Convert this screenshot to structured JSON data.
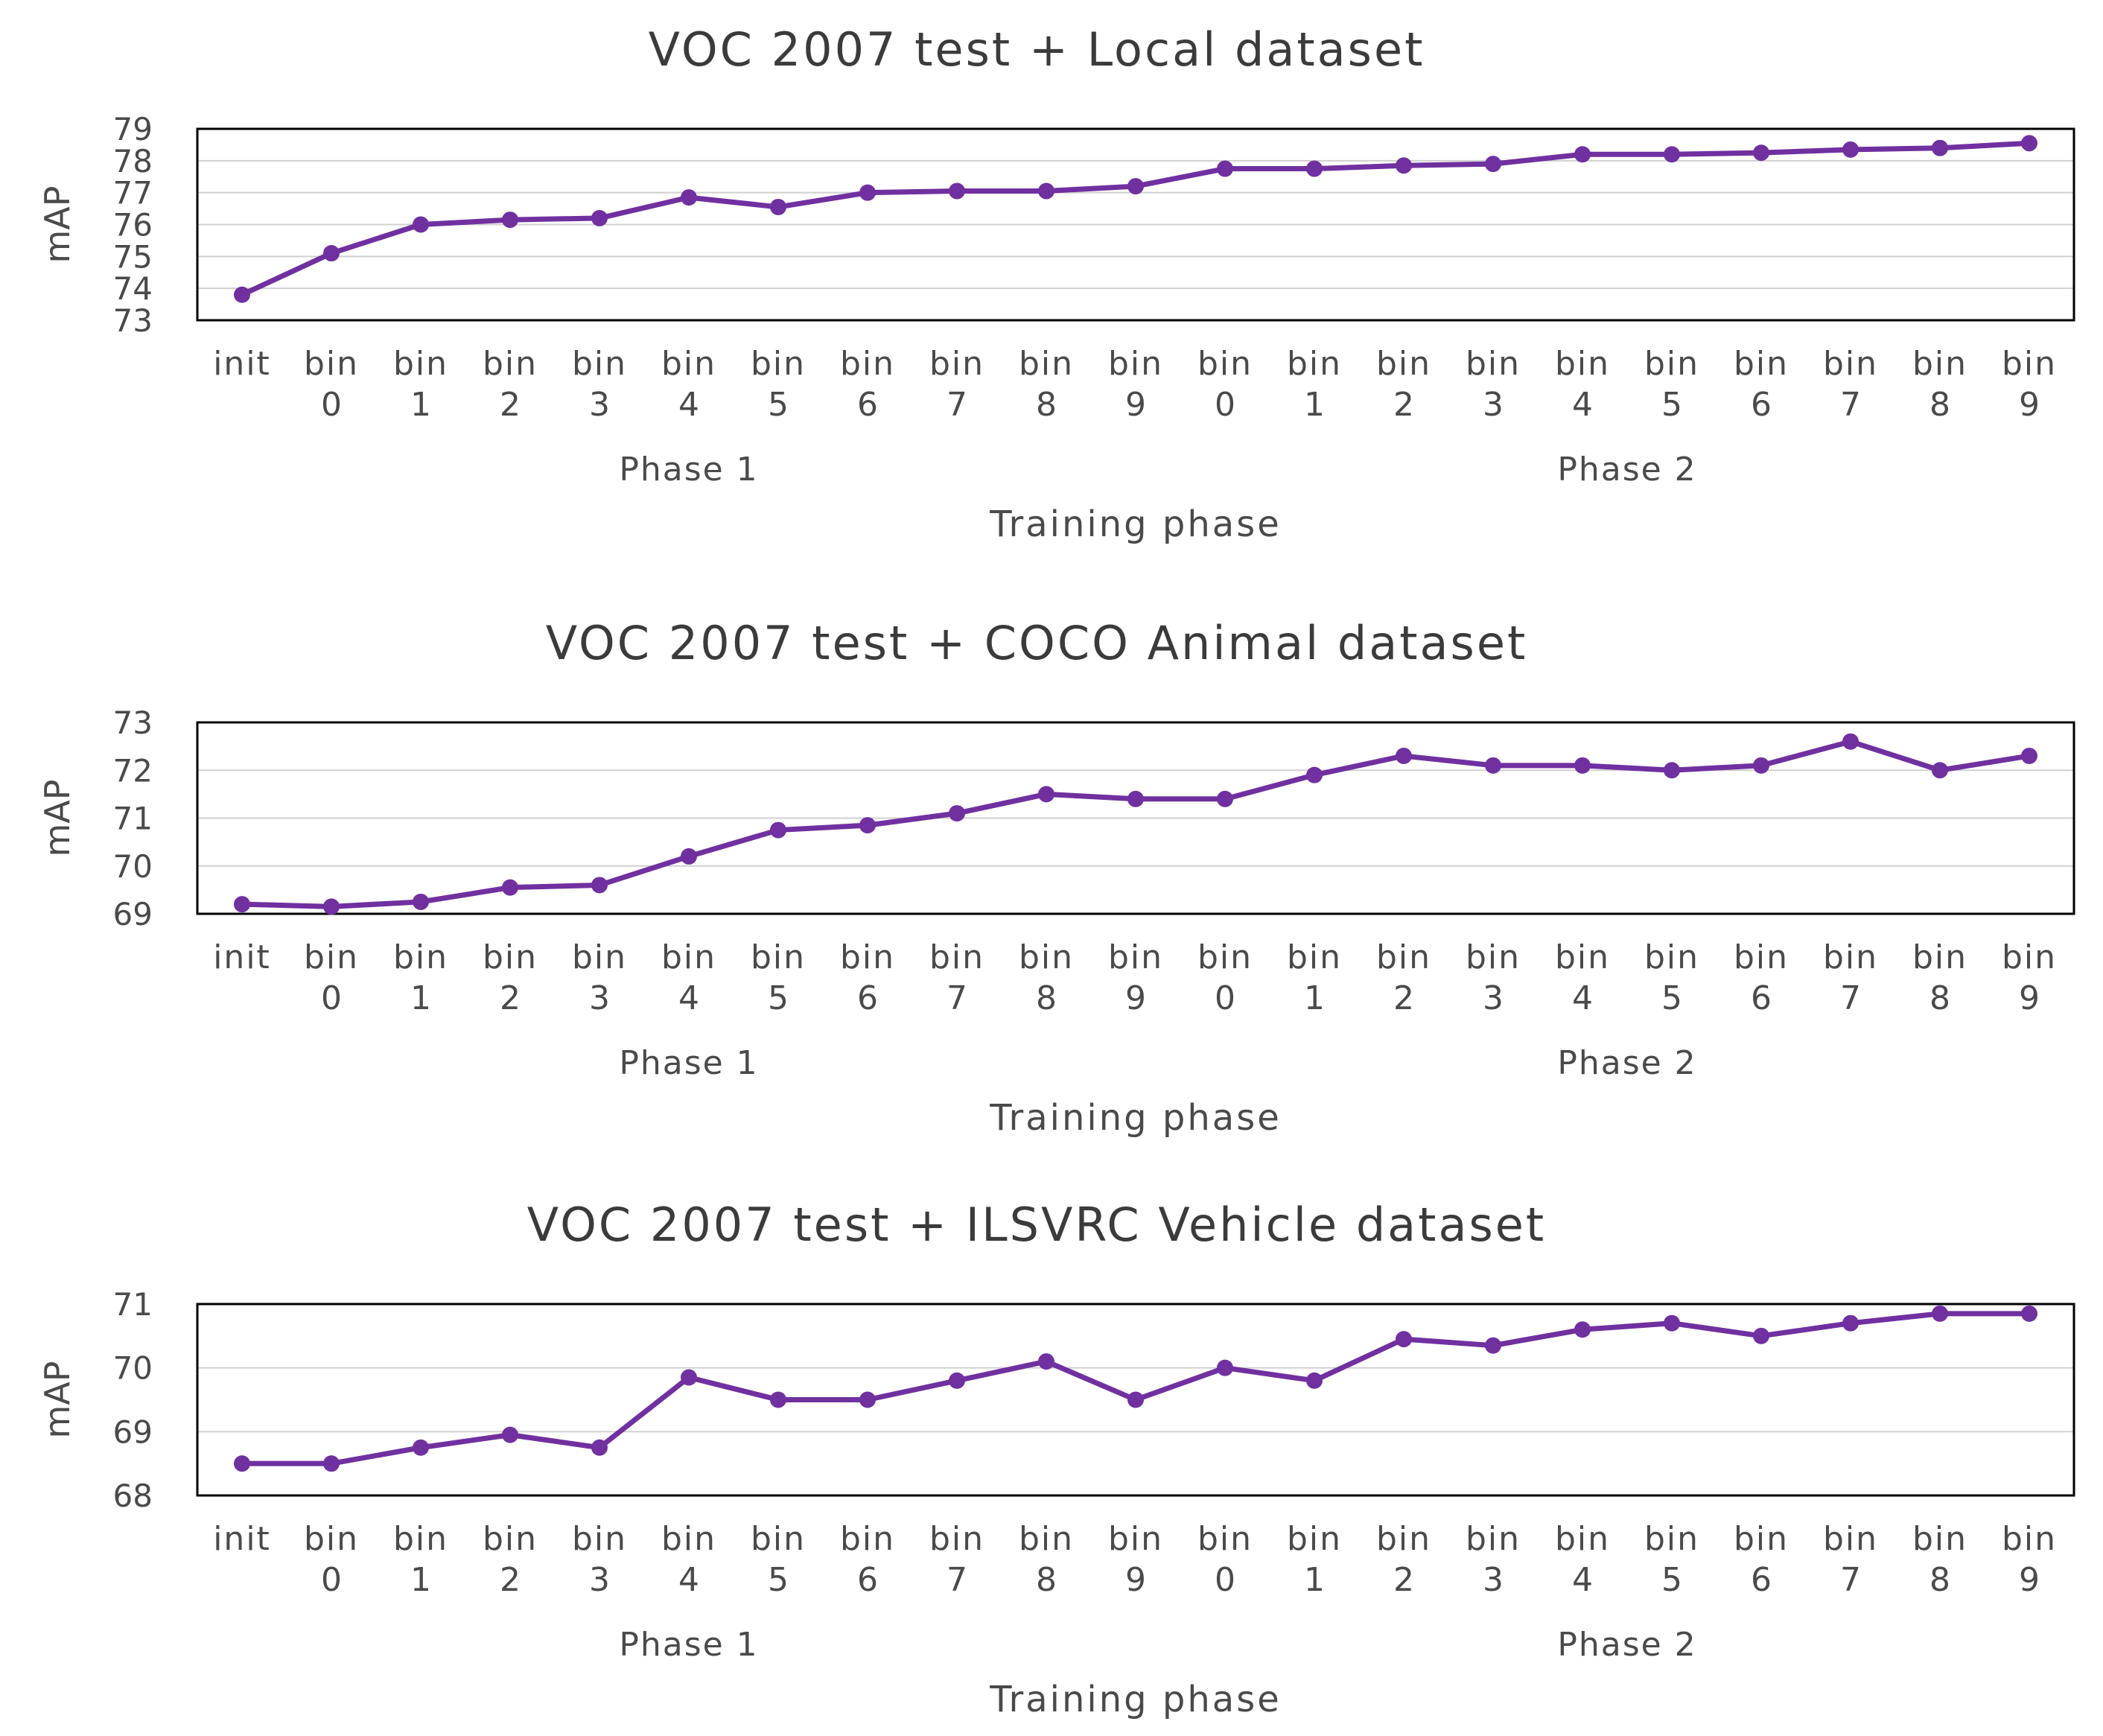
{
  "colors": {
    "line": "#7030a0",
    "frame": "#000000",
    "grid": "#d0d0d0",
    "text": "#3b3b3b"
  },
  "chart_data": [
    {
      "type": "line",
      "title": "VOC 2007 test + Local dataset",
      "xlabel": "Training phase",
      "ylabel": "mAP",
      "ylim": [
        73,
        79
      ],
      "yticks": [
        73,
        74,
        75,
        76,
        77,
        78,
        79
      ],
      "grid": true,
      "categories": [
        {
          "top": "init",
          "bottom": ""
        },
        {
          "top": "bin",
          "bottom": "0"
        },
        {
          "top": "bin",
          "bottom": "1"
        },
        {
          "top": "bin",
          "bottom": "2"
        },
        {
          "top": "bin",
          "bottom": "3"
        },
        {
          "top": "bin",
          "bottom": "4"
        },
        {
          "top": "bin",
          "bottom": "5"
        },
        {
          "top": "bin",
          "bottom": "6"
        },
        {
          "top": "bin",
          "bottom": "7"
        },
        {
          "top": "bin",
          "bottom": "8"
        },
        {
          "top": "bin",
          "bottom": "9"
        },
        {
          "top": "bin",
          "bottom": "0"
        },
        {
          "top": "bin",
          "bottom": "1"
        },
        {
          "top": "bin",
          "bottom": "2"
        },
        {
          "top": "bin",
          "bottom": "3"
        },
        {
          "top": "bin",
          "bottom": "4"
        },
        {
          "top": "bin",
          "bottom": "5"
        },
        {
          "top": "bin",
          "bottom": "6"
        },
        {
          "top": "bin",
          "bottom": "7"
        },
        {
          "top": "bin",
          "bottom": "8"
        },
        {
          "top": "bin",
          "bottom": "9"
        }
      ],
      "groups": [
        {
          "label": "Phase 1",
          "start": 0,
          "end": 10
        },
        {
          "label": "Phase 2",
          "start": 11,
          "end": 20
        }
      ],
      "values": [
        73.8,
        75.1,
        76.0,
        76.15,
        76.2,
        76.85,
        76.55,
        77.0,
        77.05,
        77.05,
        77.2,
        77.75,
        77.75,
        77.85,
        77.9,
        78.2,
        78.2,
        78.25,
        78.35,
        78.4,
        78.55
      ]
    },
    {
      "type": "line",
      "title": "VOC 2007 test + COCO Animal dataset",
      "xlabel": "Training phase",
      "ylabel": "mAP",
      "ylim": [
        69,
        73
      ],
      "yticks": [
        69,
        70,
        71,
        72,
        73
      ],
      "grid": true,
      "categories": [
        {
          "top": "init",
          "bottom": ""
        },
        {
          "top": "bin",
          "bottom": "0"
        },
        {
          "top": "bin",
          "bottom": "1"
        },
        {
          "top": "bin",
          "bottom": "2"
        },
        {
          "top": "bin",
          "bottom": "3"
        },
        {
          "top": "bin",
          "bottom": "4"
        },
        {
          "top": "bin",
          "bottom": "5"
        },
        {
          "top": "bin",
          "bottom": "6"
        },
        {
          "top": "bin",
          "bottom": "7"
        },
        {
          "top": "bin",
          "bottom": "8"
        },
        {
          "top": "bin",
          "bottom": "9"
        },
        {
          "top": "bin",
          "bottom": "0"
        },
        {
          "top": "bin",
          "bottom": "1"
        },
        {
          "top": "bin",
          "bottom": "2"
        },
        {
          "top": "bin",
          "bottom": "3"
        },
        {
          "top": "bin",
          "bottom": "4"
        },
        {
          "top": "bin",
          "bottom": "5"
        },
        {
          "top": "bin",
          "bottom": "6"
        },
        {
          "top": "bin",
          "bottom": "7"
        },
        {
          "top": "bin",
          "bottom": "8"
        },
        {
          "top": "bin",
          "bottom": "9"
        }
      ],
      "groups": [
        {
          "label": "Phase 1",
          "start": 0,
          "end": 10
        },
        {
          "label": "Phase 2",
          "start": 11,
          "end": 20
        }
      ],
      "values": [
        69.2,
        69.15,
        69.25,
        69.55,
        69.6,
        70.2,
        70.75,
        70.85,
        71.1,
        71.5,
        71.4,
        71.4,
        71.9,
        72.3,
        72.1,
        72.1,
        72.0,
        72.1,
        72.6,
        72.0,
        72.3
      ]
    },
    {
      "type": "line",
      "title": "VOC 2007 test + ILSVRC Vehicle dataset",
      "xlabel": "Training phase",
      "ylabel": "mAP",
      "ylim": [
        68,
        71
      ],
      "yticks": [
        68,
        69,
        70,
        71
      ],
      "grid": true,
      "categories": [
        {
          "top": "init",
          "bottom": ""
        },
        {
          "top": "bin",
          "bottom": "0"
        },
        {
          "top": "bin",
          "bottom": "1"
        },
        {
          "top": "bin",
          "bottom": "2"
        },
        {
          "top": "bin",
          "bottom": "3"
        },
        {
          "top": "bin",
          "bottom": "4"
        },
        {
          "top": "bin",
          "bottom": "5"
        },
        {
          "top": "bin",
          "bottom": "6"
        },
        {
          "top": "bin",
          "bottom": "7"
        },
        {
          "top": "bin",
          "bottom": "8"
        },
        {
          "top": "bin",
          "bottom": "9"
        },
        {
          "top": "bin",
          "bottom": "0"
        },
        {
          "top": "bin",
          "bottom": "1"
        },
        {
          "top": "bin",
          "bottom": "2"
        },
        {
          "top": "bin",
          "bottom": "3"
        },
        {
          "top": "bin",
          "bottom": "4"
        },
        {
          "top": "bin",
          "bottom": "5"
        },
        {
          "top": "bin",
          "bottom": "6"
        },
        {
          "top": "bin",
          "bottom": "7"
        },
        {
          "top": "bin",
          "bottom": "8"
        },
        {
          "top": "bin",
          "bottom": "9"
        }
      ],
      "groups": [
        {
          "label": "Phase 1",
          "start": 0,
          "end": 10
        },
        {
          "label": "Phase 2",
          "start": 11,
          "end": 20
        }
      ],
      "values": [
        68.5,
        68.5,
        68.75,
        68.95,
        68.75,
        69.85,
        69.5,
        69.5,
        69.8,
        70.1,
        69.5,
        70.0,
        69.8,
        70.45,
        70.35,
        70.6,
        70.7,
        70.5,
        70.7,
        70.85,
        70.85
      ]
    }
  ]
}
